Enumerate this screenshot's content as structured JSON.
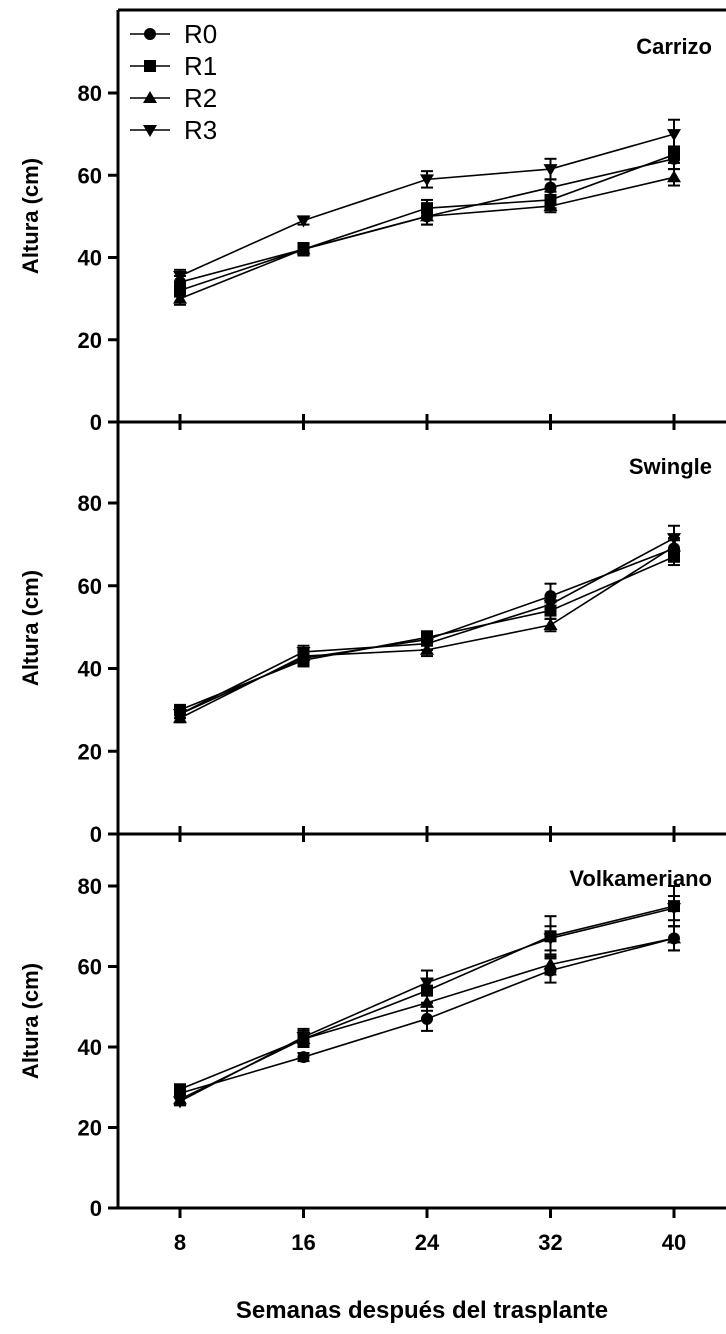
{
  "chart_data": {
    "type": "line",
    "xlabel": "Semanas después del trasplante",
    "x": [
      8,
      16,
      24,
      32,
      40
    ],
    "x_ticks": [
      "8",
      "16",
      "24",
      "32",
      "40"
    ],
    "y_ticks": [
      "0",
      "20",
      "40",
      "60",
      "80"
    ],
    "ylim": [
      0,
      100
    ],
    "legend": {
      "position": "top-left",
      "entries": [
        "R0",
        "R1",
        "R2",
        "R3"
      ],
      "markers": [
        "circle",
        "square",
        "triangle-up",
        "triangle-down"
      ]
    },
    "panels": [
      {
        "title": "Carrizo",
        "ylabel": "Altura (cm)",
        "series": [
          {
            "name": "R0",
            "marker": "circle",
            "values": [
              34,
              42,
              50,
              57,
              64
            ],
            "errors": [
              1.5,
              1.5,
              2,
              2,
              2.5
            ]
          },
          {
            "name": "R1",
            "marker": "square",
            "values": [
              32,
              42,
              52,
              54,
              65
            ],
            "errors": [
              1.5,
              1.5,
              2,
              2,
              2
            ]
          },
          {
            "name": "R2",
            "marker": "triangle-up",
            "values": [
              30,
              42,
              50,
              52.5,
              59.5
            ],
            "errors": [
              1.5,
              1.5,
              2,
              1.5,
              2
            ]
          },
          {
            "name": "R3",
            "marker": "triangle-down",
            "values": [
              35.5,
              49,
              59,
              61.5,
              70
            ],
            "errors": [
              1.5,
              1,
              2,
              2.5,
              3.5
            ]
          }
        ]
      },
      {
        "title": "Swingle",
        "ylabel": "Altura (cm)",
        "series": [
          {
            "name": "R0",
            "marker": "circle",
            "values": [
              29,
              42.5,
              47,
              57.5,
              69
            ],
            "errors": [
              1,
              1.5,
              1.5,
              3,
              2
            ]
          },
          {
            "name": "R1",
            "marker": "square",
            "values": [
              30,
              42,
              47.5,
              54,
              67
            ],
            "errors": [
              1,
              1.5,
              1.5,
              2,
              2
            ]
          },
          {
            "name": "R2",
            "marker": "triangle-up",
            "values": [
              28,
              43,
              44.5,
              50.5,
              69.5
            ],
            "errors": [
              1,
              1.5,
              1.5,
              1.5,
              2
            ]
          },
          {
            "name": "R3",
            "marker": "triangle-down",
            "values": [
              29,
              44,
              46,
              55.5,
              71.5
            ],
            "errors": [
              1,
              1.5,
              1.5,
              2,
              3
            ]
          }
        ]
      },
      {
        "title": "Volkameriano",
        "ylabel": "Altura (cm)",
        "series": [
          {
            "name": "R0",
            "marker": "circle",
            "values": [
              28.5,
              37.5,
              47,
              59,
              67
            ],
            "errors": [
              1,
              1,
              3,
              3,
              3
            ]
          },
          {
            "name": "R1",
            "marker": "square",
            "values": [
              29.5,
              42,
              54,
              67.5,
              75
            ],
            "errors": [
              1,
              2,
              3,
              5,
              5
            ]
          },
          {
            "name": "R2",
            "marker": "triangle-up",
            "values": [
              27,
              42,
              51,
              60.5,
              67
            ],
            "errors": [
              1,
              1.5,
              2,
              2.5,
              3
            ]
          },
          {
            "name": "R3",
            "marker": "triangle-down",
            "values": [
              26.5,
              42.5,
              56,
              67,
              74.5
            ],
            "errors": [
              1,
              2,
              3,
              3,
              3
            ]
          }
        ]
      }
    ]
  }
}
